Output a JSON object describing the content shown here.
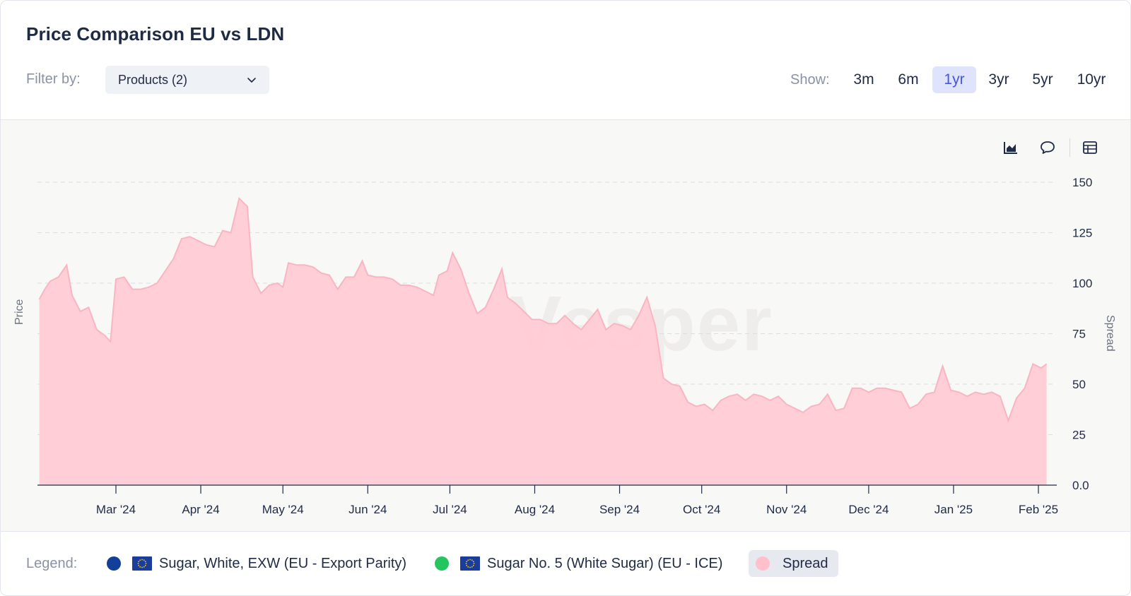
{
  "header": {
    "title": "Price Comparison EU vs LDN",
    "filter_label": "Filter by:",
    "filter_value": "Products (2)",
    "show_label": "Show:",
    "ranges": [
      "3m",
      "6m",
      "1yr",
      "3yr",
      "5yr",
      "10yr"
    ],
    "active_range": "1yr"
  },
  "toolbar": {
    "icons": [
      "area-chart-icon",
      "comment-icon",
      "table-icon"
    ]
  },
  "colors": {
    "spread_fill": "#ffcbd5",
    "spread_line": "#fbb4c2",
    "series1": "#123f9a",
    "series2": "#22c55e",
    "active_tab": "#4654e6"
  },
  "legend": {
    "label": "Legend:",
    "items": [
      {
        "name": "Sugar, White, EXW (EU - Export Parity)",
        "color": "#123f9a",
        "flag": true,
        "active": false
      },
      {
        "name": "Sugar No. 5 (White Sugar) (EU - ICE)",
        "color": "#22c55e",
        "flag": true,
        "active": false
      },
      {
        "name": "Spread",
        "color": "#ffc0cb",
        "flag": false,
        "active": true
      }
    ]
  },
  "watermark": "Vesper",
  "chart_data": {
    "type": "area",
    "title": "",
    "xlabel": "",
    "ylabel_left": "Price",
    "ylabel_right": "Spread",
    "ylim": [
      0,
      150
    ],
    "y_ticks": [
      "0.0",
      "25",
      "50",
      "75",
      "100",
      "125",
      "150"
    ],
    "x_ticks": [
      {
        "label": "Mar '24",
        "date": "2024-03-01"
      },
      {
        "label": "Apr '24",
        "date": "2024-04-01"
      },
      {
        "label": "May '24",
        "date": "2024-05-01"
      },
      {
        "label": "Jun '24",
        "date": "2024-06-01"
      },
      {
        "label": "Jul '24",
        "date": "2024-07-01"
      },
      {
        "label": "Aug '24",
        "date": "2024-08-01"
      },
      {
        "label": "Sep '24",
        "date": "2024-09-01"
      },
      {
        "label": "Oct '24",
        "date": "2024-10-01"
      },
      {
        "label": "Nov '24",
        "date": "2024-11-01"
      },
      {
        "label": "Dec '24",
        "date": "2024-12-01"
      },
      {
        "label": "Jan '25",
        "date": "2025-01-01"
      },
      {
        "label": "Feb '25",
        "date": "2025-02-01"
      }
    ],
    "grid": true,
    "legend_position": "bottom",
    "series": [
      {
        "name": "Spread",
        "points": [
          [
            "2024-02-02",
            92
          ],
          [
            "2024-02-04",
            97
          ],
          [
            "2024-02-06",
            101
          ],
          [
            "2024-02-09",
            103
          ],
          [
            "2024-02-12",
            109
          ],
          [
            "2024-02-14",
            94
          ],
          [
            "2024-02-17",
            86
          ],
          [
            "2024-02-20",
            88
          ],
          [
            "2024-02-23",
            77
          ],
          [
            "2024-02-26",
            74
          ],
          [
            "2024-02-28",
            71
          ],
          [
            "2024-03-01",
            102
          ],
          [
            "2024-03-04",
            103
          ],
          [
            "2024-03-07",
            97
          ],
          [
            "2024-03-10",
            97
          ],
          [
            "2024-03-13",
            98
          ],
          [
            "2024-03-16",
            100
          ],
          [
            "2024-03-19",
            106
          ],
          [
            "2024-03-22",
            112
          ],
          [
            "2024-03-25",
            122
          ],
          [
            "2024-03-28",
            123
          ],
          [
            "2024-03-31",
            121
          ],
          [
            "2024-04-03",
            119
          ],
          [
            "2024-04-06",
            118
          ],
          [
            "2024-04-09",
            126
          ],
          [
            "2024-04-12",
            125
          ],
          [
            "2024-04-15",
            142
          ],
          [
            "2024-04-18",
            138
          ],
          [
            "2024-04-20",
            103
          ],
          [
            "2024-04-23",
            95
          ],
          [
            "2024-04-26",
            99
          ],
          [
            "2024-04-29",
            100
          ],
          [
            "2024-05-01",
            98
          ],
          [
            "2024-05-03",
            110
          ],
          [
            "2024-05-06",
            109
          ],
          [
            "2024-05-09",
            109
          ],
          [
            "2024-05-12",
            108
          ],
          [
            "2024-05-15",
            105
          ],
          [
            "2024-05-18",
            104
          ],
          [
            "2024-05-21",
            97
          ],
          [
            "2024-05-24",
            103
          ],
          [
            "2024-05-27",
            103
          ],
          [
            "2024-05-30",
            111
          ],
          [
            "2024-06-01",
            104
          ],
          [
            "2024-06-04",
            103
          ],
          [
            "2024-06-07",
            103
          ],
          [
            "2024-06-10",
            102
          ],
          [
            "2024-06-13",
            99
          ],
          [
            "2024-06-16",
            99
          ],
          [
            "2024-06-19",
            98
          ],
          [
            "2024-06-22",
            96
          ],
          [
            "2024-06-25",
            94
          ],
          [
            "2024-06-27",
            104
          ],
          [
            "2024-06-30",
            106
          ],
          [
            "2024-07-02",
            115
          ],
          [
            "2024-07-05",
            107
          ],
          [
            "2024-07-08",
            95
          ],
          [
            "2024-07-11",
            85
          ],
          [
            "2024-07-14",
            88
          ],
          [
            "2024-07-17",
            97
          ],
          [
            "2024-07-20",
            107
          ],
          [
            "2024-07-22",
            93
          ],
          [
            "2024-07-25",
            90
          ],
          [
            "2024-07-28",
            86
          ],
          [
            "2024-07-31",
            82
          ],
          [
            "2024-08-03",
            82
          ],
          [
            "2024-08-06",
            80
          ],
          [
            "2024-08-09",
            80
          ],
          [
            "2024-08-12",
            84
          ],
          [
            "2024-08-15",
            80
          ],
          [
            "2024-08-18",
            77
          ],
          [
            "2024-08-21",
            82
          ],
          [
            "2024-08-24",
            87
          ],
          [
            "2024-08-27",
            77
          ],
          [
            "2024-08-30",
            80
          ],
          [
            "2024-09-02",
            79
          ],
          [
            "2024-09-05",
            77
          ],
          [
            "2024-09-08",
            84
          ],
          [
            "2024-09-11",
            93
          ],
          [
            "2024-09-14",
            79
          ],
          [
            "2024-09-17",
            53
          ],
          [
            "2024-09-20",
            50
          ],
          [
            "2024-09-23",
            49
          ],
          [
            "2024-09-26",
            41
          ],
          [
            "2024-09-29",
            39
          ],
          [
            "2024-10-02",
            40
          ],
          [
            "2024-10-05",
            37
          ],
          [
            "2024-10-08",
            42
          ],
          [
            "2024-10-11",
            44
          ],
          [
            "2024-10-14",
            45
          ],
          [
            "2024-10-17",
            42
          ],
          [
            "2024-10-20",
            45
          ],
          [
            "2024-10-23",
            44
          ],
          [
            "2024-10-26",
            42
          ],
          [
            "2024-10-29",
            44
          ],
          [
            "2024-11-01",
            40
          ],
          [
            "2024-11-04",
            38
          ],
          [
            "2024-11-07",
            36
          ],
          [
            "2024-11-10",
            39
          ],
          [
            "2024-11-13",
            40
          ],
          [
            "2024-11-16",
            45
          ],
          [
            "2024-11-19",
            37
          ],
          [
            "2024-11-22",
            38
          ],
          [
            "2024-11-25",
            48
          ],
          [
            "2024-11-28",
            48
          ],
          [
            "2024-12-01",
            46
          ],
          [
            "2024-12-04",
            48
          ],
          [
            "2024-12-07",
            48
          ],
          [
            "2024-12-10",
            47
          ],
          [
            "2024-12-13",
            46
          ],
          [
            "2024-12-16",
            38
          ],
          [
            "2024-12-19",
            40
          ],
          [
            "2024-12-22",
            45
          ],
          [
            "2024-12-25",
            46
          ],
          [
            "2024-12-28",
            59
          ],
          [
            "2024-12-31",
            47
          ],
          [
            "2025-01-03",
            46
          ],
          [
            "2025-01-06",
            44
          ],
          [
            "2025-01-09",
            46
          ],
          [
            "2025-01-12",
            45
          ],
          [
            "2025-01-15",
            46
          ],
          [
            "2025-01-18",
            44
          ],
          [
            "2025-01-21",
            32
          ],
          [
            "2025-01-24",
            43
          ],
          [
            "2025-01-27",
            48
          ],
          [
            "2025-01-30",
            60
          ],
          [
            "2025-02-02",
            58
          ],
          [
            "2025-02-04",
            60
          ]
        ]
      }
    ]
  }
}
